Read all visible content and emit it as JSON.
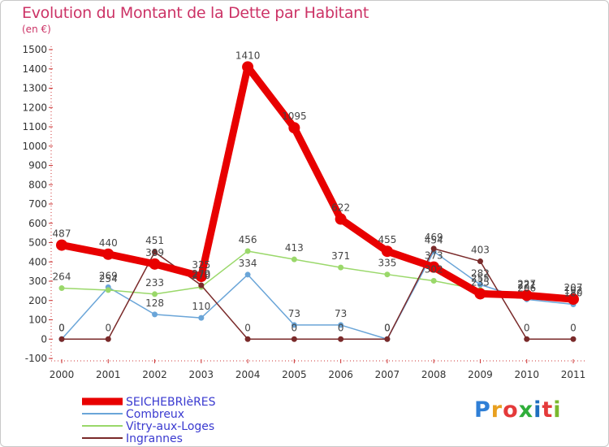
{
  "title": "Evolution du Montant de la Dette par Habitant",
  "unit_label": "(en €)",
  "brand": "Proxiti",
  "brand_colors": [
    "#2f7fd6",
    "#e8a020",
    "#e43a3a",
    "#2fae3a",
    "#1f6fbf",
    "#e43a3a",
    "#7ab82e"
  ],
  "chart_data": {
    "type": "line",
    "x": [
      "2000",
      "2001",
      "2002",
      "2003",
      "2004",
      "2005",
      "2006",
      "2007",
      "2008",
      "2009",
      "2010",
      "2011"
    ],
    "ylim": [
      -100,
      1500
    ],
    "yticks": [
      -100,
      0,
      100,
      200,
      300,
      400,
      500,
      600,
      700,
      800,
      900,
      1000,
      1100,
      1200,
      1300,
      1400,
      1500
    ],
    "grid": false,
    "legend_position": "bottom-left",
    "series": [
      {
        "name": "SEICHEBRIèRES",
        "color": "#e80000",
        "width": 9,
        "values": [
          487,
          440,
          389,
          325,
          1410,
          1095,
          622,
          455,
          373,
          235,
          227,
          207
        ],
        "labels": [
          "487",
          "440",
          "389",
          "325",
          "1410",
          "1095",
          "622",
          "455",
          "373",
          "235",
          "227",
          "207"
        ]
      },
      {
        "name": "Combreux",
        "color": "#6aa5d8",
        "width": 1.5,
        "values": [
          0,
          269,
          128,
          110,
          334,
          73,
          73,
          0,
          454,
          282,
          206,
          180
        ],
        "labels": [
          "0",
          "269",
          "128",
          "110",
          "334",
          "73",
          "73",
          "0",
          "454",
          "282",
          "206",
          "180"
        ]
      },
      {
        "name": "Vitry-aux-Loges",
        "color": "#9ad86a",
        "width": 1.5,
        "values": [
          264,
          254,
          233,
          270,
          456,
          413,
          371,
          335,
          302,
          255,
          221,
          192
        ],
        "labels": [
          "264",
          "254",
          "233",
          "270",
          "456",
          "413",
          "371",
          "335",
          "302",
          "255",
          "221",
          "192"
        ]
      },
      {
        "name": "Ingrannes",
        "color": "#7a2a2a",
        "width": 1.5,
        "values": [
          0,
          0,
          451,
          279,
          0,
          0,
          0,
          0,
          469,
          403,
          0,
          0
        ],
        "labels": [
          "0",
          "0",
          "451",
          "279",
          "0",
          "0",
          "0",
          "0",
          "469",
          "403",
          "0",
          "0"
        ]
      }
    ]
  }
}
